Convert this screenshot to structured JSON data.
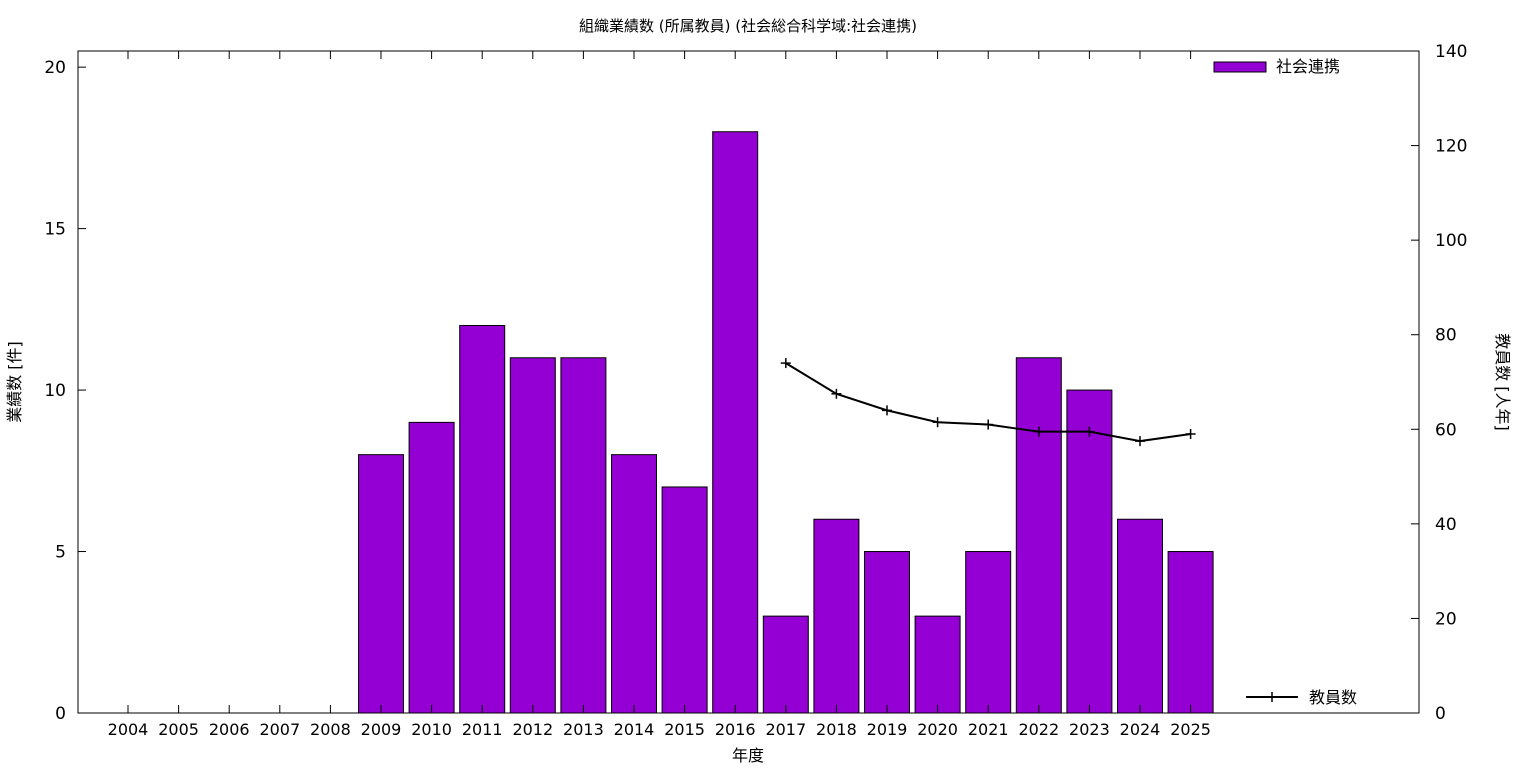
{
  "chart_data": {
    "type": "bar",
    "title": "組織業績数 (所属教員) (社会総合科学域:社会連携)",
    "xlabel": "年度",
    "ylabel": "業績数 [件]",
    "y2label": "教員数 [人年]",
    "categories": [
      "2004",
      "2005",
      "2006",
      "2007",
      "2008",
      "2009",
      "2010",
      "2011",
      "2012",
      "2013",
      "2014",
      "2015",
      "2016",
      "2017",
      "2018",
      "2019",
      "2020",
      "2021",
      "2022",
      "2023",
      "2024",
      "2025"
    ],
    "ylim": [
      0,
      20.5
    ],
    "y2lim": [
      0,
      140
    ],
    "yticks": [
      0,
      5,
      10,
      15,
      20
    ],
    "y2ticks": [
      0,
      20,
      40,
      60,
      80,
      100,
      120,
      140
    ],
    "series": [
      {
        "name": "社会連携",
        "type": "bar",
        "color": "#9400d3",
        "axis": "left",
        "values": [
          null,
          null,
          null,
          null,
          null,
          8,
          9,
          12,
          11,
          11,
          8,
          7,
          18,
          3,
          6,
          5,
          3,
          5,
          11,
          10,
          6,
          5
        ]
      },
      {
        "name": "教員数",
        "type": "line",
        "color": "#000000",
        "axis": "right",
        "values": [
          null,
          null,
          null,
          null,
          null,
          null,
          null,
          null,
          null,
          null,
          null,
          null,
          null,
          74,
          67.5,
          64,
          61.5,
          61,
          59.5,
          59.5,
          57.5,
          59
        ]
      }
    ],
    "legend": "top-right"
  }
}
